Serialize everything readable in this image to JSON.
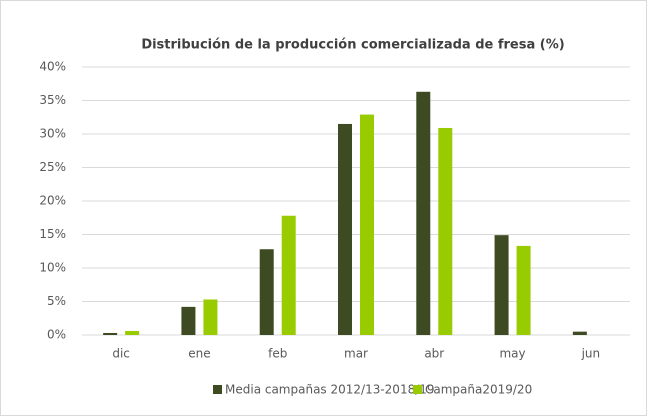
{
  "chart_data": {
    "type": "bar",
    "title": "Distribución de la producción comercializada de fresa (%)",
    "categories": [
      "dic",
      "ene",
      "feb",
      "mar",
      "abr",
      "may",
      "jun"
    ],
    "series": [
      {
        "name": "Media campañas 2012/13-2018/19",
        "color": "#3e4a22",
        "values": [
          0.3,
          4.2,
          12.8,
          31.5,
          36.3,
          14.9,
          0.5
        ]
      },
      {
        "name": "Campaña2019/20",
        "color": "#99cc00",
        "values": [
          0.6,
          5.3,
          17.8,
          32.9,
          30.9,
          13.3,
          0
        ]
      }
    ],
    "ylim": [
      0,
      40
    ],
    "yticks": [
      {
        "value": 0,
        "label": "0%"
      },
      {
        "value": 5,
        "label": "5%"
      },
      {
        "value": 10,
        "label": "10%"
      },
      {
        "value": 15,
        "label": "15%"
      },
      {
        "value": 20,
        "label": "20%"
      },
      {
        "value": 25,
        "label": "25%"
      },
      {
        "value": 30,
        "label": "30%"
      },
      {
        "value": 35,
        "label": "35%"
      },
      {
        "value": 40,
        "label": "40%"
      }
    ],
    "grid": true,
    "legend": "bottom"
  }
}
